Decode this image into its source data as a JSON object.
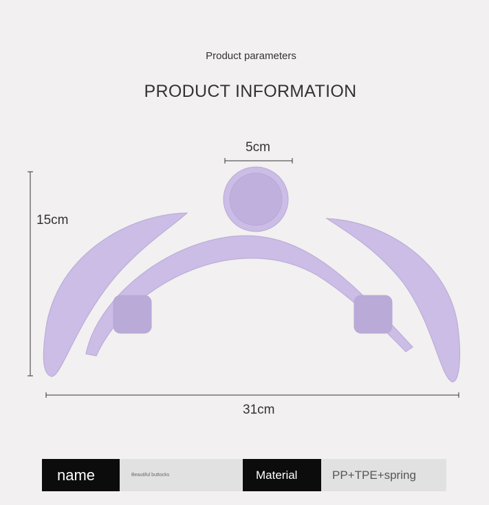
{
  "header": {
    "subtitle": "Product parameters",
    "title": "PRODUCT INFORMATION"
  },
  "dimensions": {
    "top_width": "5cm",
    "height": "15cm",
    "total_width": "31cm"
  },
  "product_color": "#cbbde6",
  "specs": [
    {
      "key": "name",
      "value": "Beautiful buttocks"
    },
    {
      "key": "Material",
      "value": "PP+TPE+spring"
    }
  ]
}
